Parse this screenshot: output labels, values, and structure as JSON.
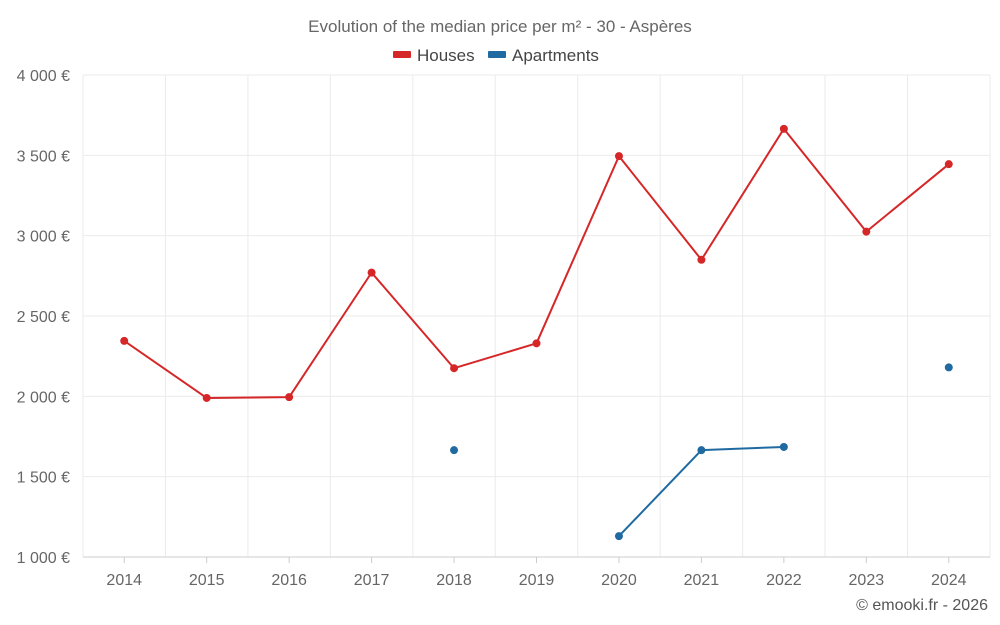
{
  "chart_data": {
    "type": "line",
    "title": "Evolution of the median price per m² - 30 - Aspères",
    "categories": [
      "2014",
      "2015",
      "2016",
      "2017",
      "2018",
      "2019",
      "2020",
      "2021",
      "2022",
      "2023",
      "2024"
    ],
    "y_ticks": [
      1000,
      1500,
      2000,
      2500,
      3000,
      3500,
      4000
    ],
    "y_tick_labels": [
      "1 000 €",
      "1 500 €",
      "2 000 €",
      "2 500 €",
      "3 000 €",
      "3 500 €",
      "4 000 €"
    ],
    "ylim": [
      1000,
      4000
    ],
    "xlabel": "",
    "ylabel": "",
    "grid": true,
    "legend_position": "top-center",
    "series": [
      {
        "name": "Houses",
        "color": "#d62728",
        "values": [
          2345,
          1990,
          1995,
          2770,
          2175,
          2330,
          3495,
          2850,
          3665,
          3025,
          3445
        ]
      },
      {
        "name": "Apartments",
        "color": "#1f6aa0",
        "values": [
          null,
          null,
          null,
          null,
          1665,
          null,
          1130,
          1665,
          1685,
          null,
          2180
        ]
      }
    ],
    "credit": "© emooki.fr - 2026"
  }
}
